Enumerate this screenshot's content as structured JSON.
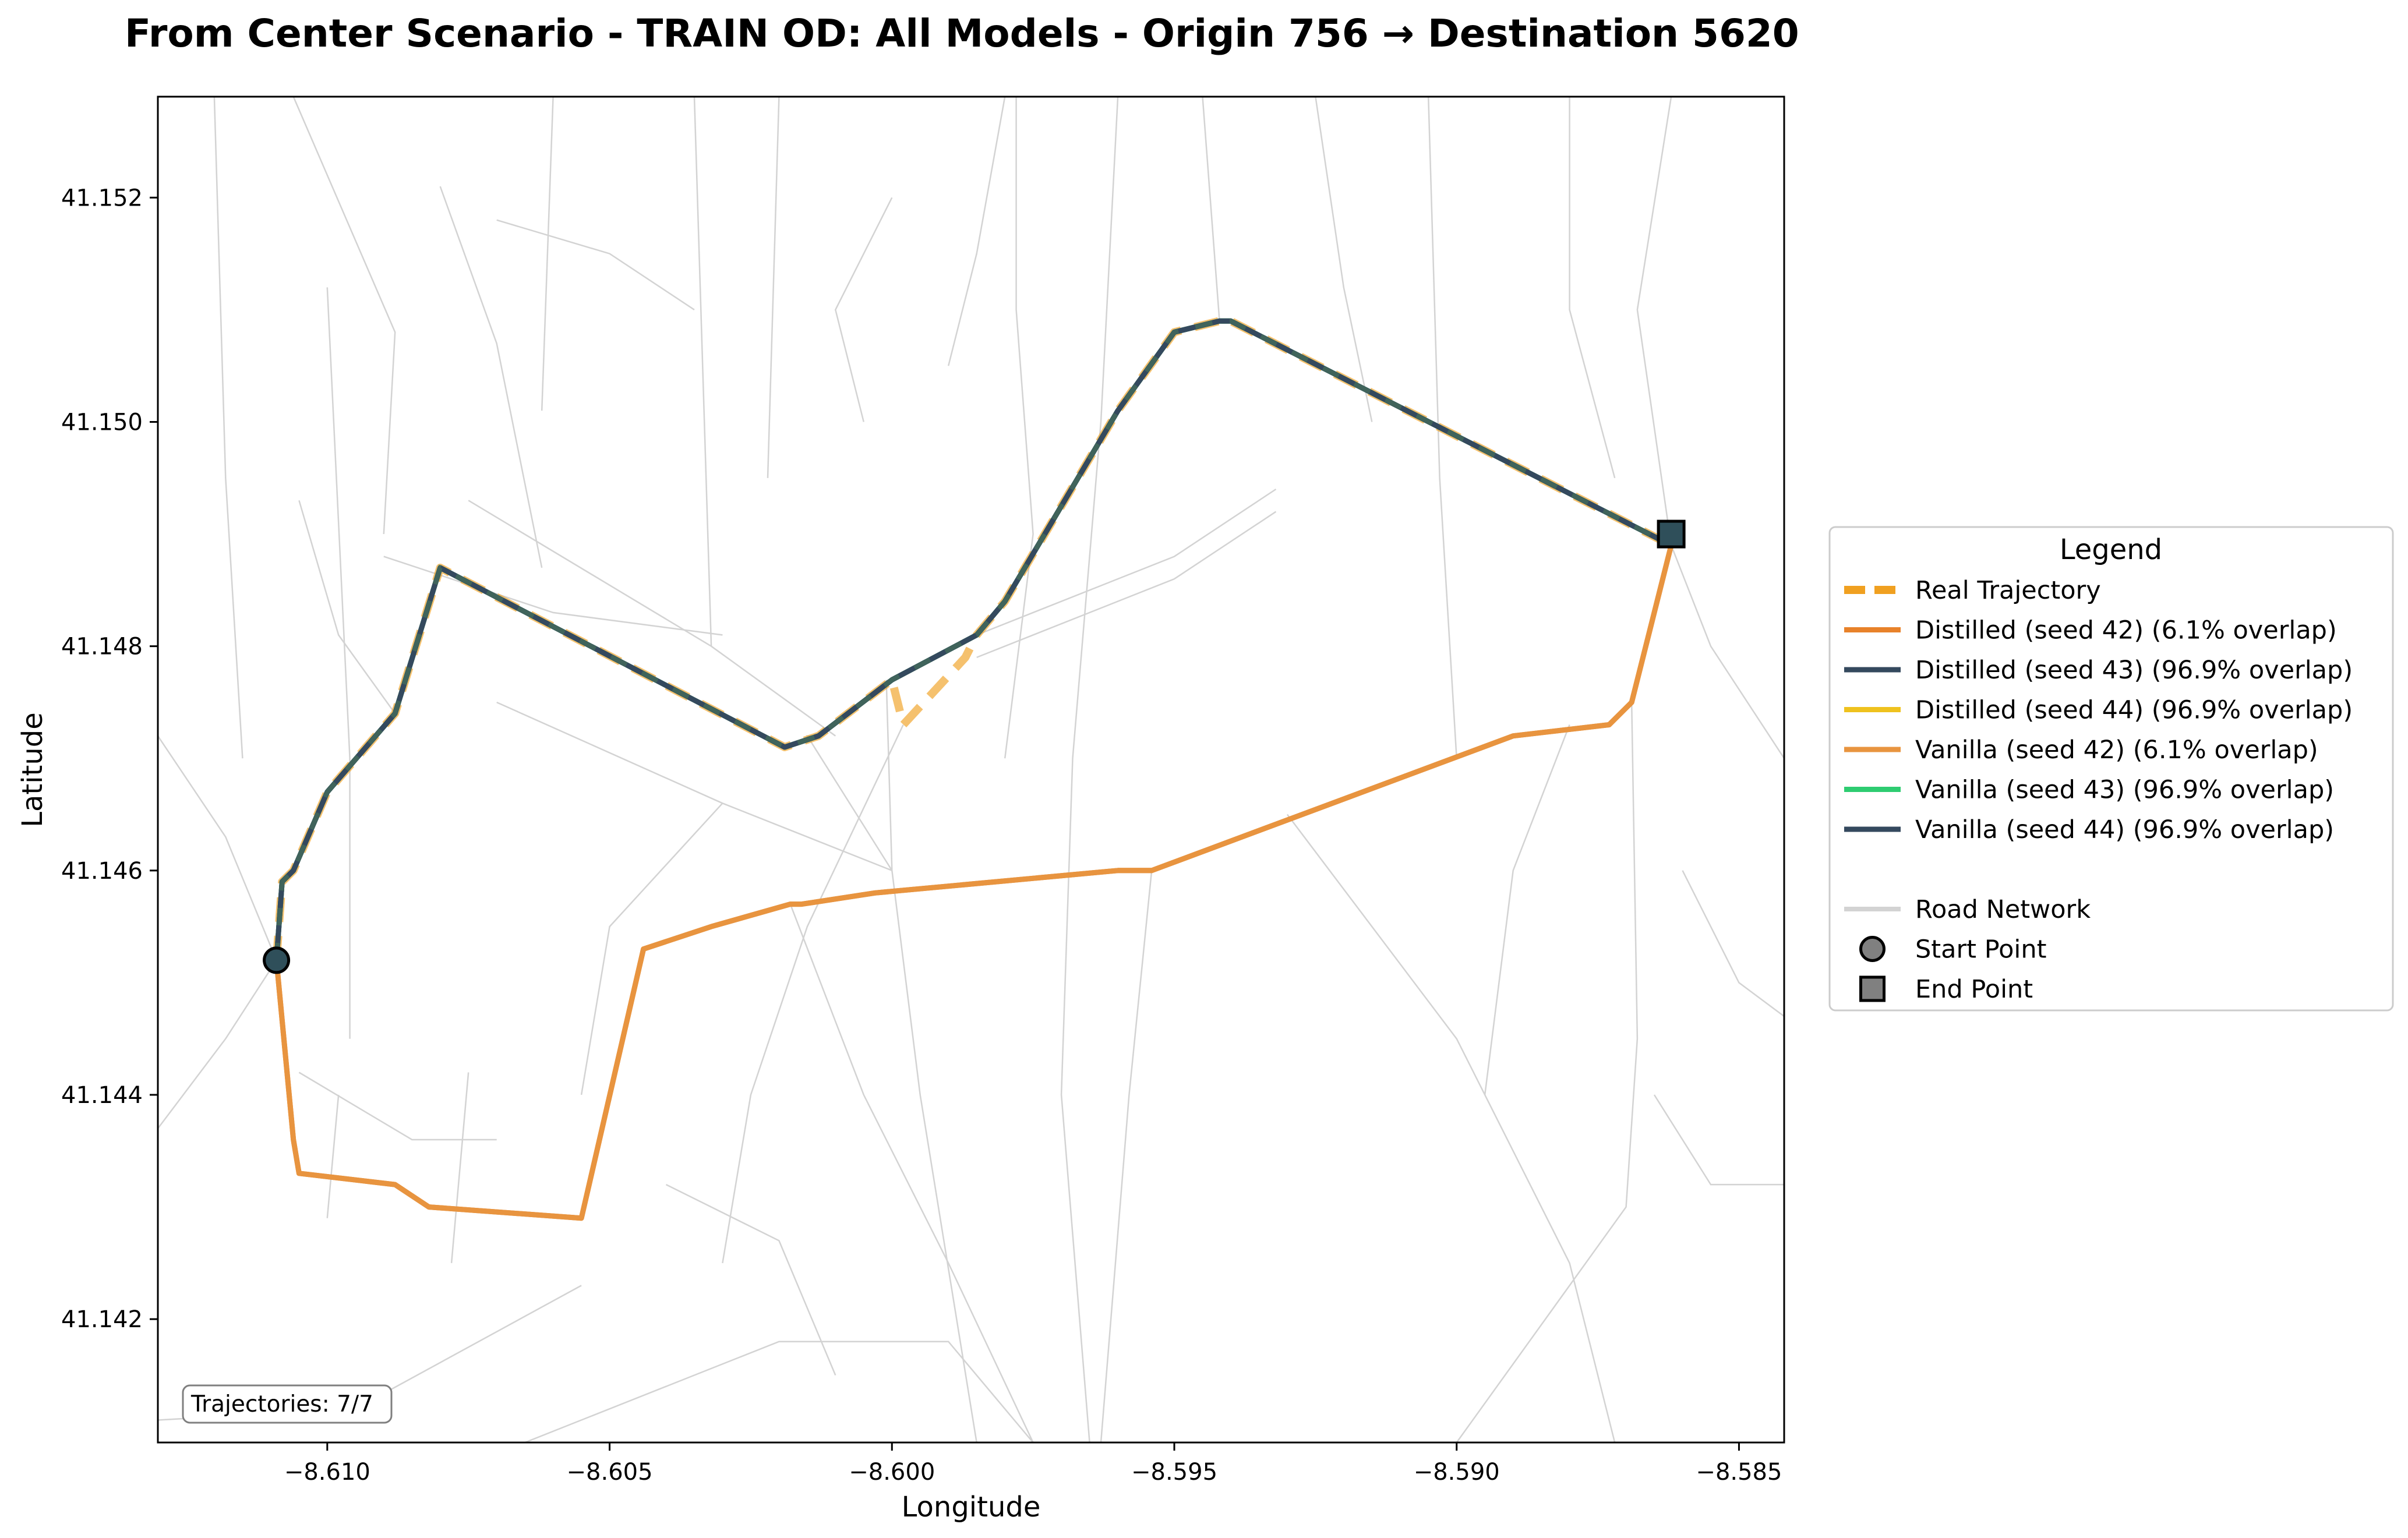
{
  "chart_data": {
    "type": "line",
    "title": "From Center Scenario - TRAIN OD: All Models - Origin 756 → Destination 5620",
    "xlabel": "Longitude",
    "ylabel": "Latitude",
    "xlim": [
      -8.613,
      -8.5842
    ],
    "ylim": [
      41.1409,
      41.1529
    ],
    "xticks": [
      -8.61,
      -8.605,
      -8.6,
      -8.595,
      -8.59,
      -8.585
    ],
    "xtick_labels": [
      "−8.610",
      "−8.605",
      "−8.600",
      "−8.595",
      "−8.590",
      "−8.585"
    ],
    "yticks": [
      41.142,
      41.144,
      41.146,
      41.148,
      41.15,
      41.152
    ],
    "ytick_labels": [
      "41.142",
      "41.144",
      "41.146",
      "41.148",
      "41.150",
      "41.152"
    ],
    "grid": false,
    "legend_title": "Legend",
    "legend_position": "outside right",
    "annotation": "Trajectories: 7/7",
    "series": [
      {
        "name": "Real Trajectory",
        "color": "#F0A020",
        "style": "dashed",
        "route": "real"
      },
      {
        "name": "Distilled (seed 42) (6.1% overlap)",
        "color": "#E8822A",
        "style": "solid",
        "route": "alt"
      },
      {
        "name": "Distilled (seed 43) (96.9% overlap)",
        "color": "#34495E",
        "style": "solid",
        "route": "main"
      },
      {
        "name": "Distilled (seed 44) (96.9% overlap)",
        "color": "#EFC21E",
        "style": "solid",
        "route": "main"
      },
      {
        "name": "Vanilla (seed 42) (6.1% overlap)",
        "color": "#E8943F",
        "style": "solid",
        "route": "alt"
      },
      {
        "name": "Vanilla (seed 43) (96.9% overlap)",
        "color": "#2ECC71",
        "style": "solid",
        "route": "main"
      },
      {
        "name": "Vanilla (seed 44) (96.9% overlap)",
        "color": "#34495E",
        "style": "solid",
        "route": "main"
      }
    ],
    "routes": {
      "main": {
        "x": [
          -8.6109,
          -8.6108,
          -8.6106,
          -8.61,
          -8.6088,
          -8.608,
          -8.6019,
          -8.6013,
          -8.6,
          -8.5985,
          -8.598,
          -8.596,
          -8.595,
          -8.5942,
          -8.594,
          -8.5862
        ],
        "y": [
          41.1452,
          41.1459,
          41.146,
          41.1467,
          41.1474,
          41.1487,
          41.1471,
          41.1472,
          41.1477,
          41.1481,
          41.1484,
          41.1501,
          41.1508,
          41.1509,
          41.1509,
          41.1489
        ]
      },
      "real": {
        "x": [
          -8.6109,
          -8.6108,
          -8.6106,
          -8.61,
          -8.6088,
          -8.608,
          -8.6019,
          -8.6013,
          -8.6,
          -8.5998,
          -8.5987,
          -8.5985,
          -8.598,
          -8.596,
          -8.595,
          -8.5942,
          -8.594,
          -8.5862
        ],
        "y": [
          41.1452,
          41.1459,
          41.146,
          41.1467,
          41.1474,
          41.1487,
          41.1471,
          41.1472,
          41.1477,
          41.1473,
          41.1479,
          41.1481,
          41.1484,
          41.1501,
          41.1508,
          41.1509,
          41.1509,
          41.1489
        ]
      },
      "alt": {
        "x": [
          -8.6109,
          -8.6106,
          -8.6105,
          -8.6088,
          -8.6082,
          -8.6055,
          -8.6044,
          -8.6032,
          -8.6018,
          -8.6016,
          -8.6003,
          -8.596,
          -8.5954,
          -8.589,
          -8.5873,
          -8.5869,
          -8.5862
        ],
        "y": [
          41.1452,
          41.1436,
          41.1433,
          41.1432,
          41.143,
          41.1429,
          41.1453,
          41.1455,
          41.1457,
          41.1457,
          41.1458,
          41.146,
          41.146,
          41.1472,
          41.1473,
          41.1475,
          41.1489
        ]
      }
    },
    "start_point": {
      "x": -8.6109,
      "y": 41.1452,
      "label": "Start Point"
    },
    "end_point": {
      "x": -8.5862,
      "y": 41.149,
      "label": "End Point"
    },
    "road_network_label": "Road Network",
    "road_network": [
      [
        [
          -8.6106,
          41.1529
        ],
        [
          -8.6088,
          41.1508
        ],
        [
          -8.609,
          41.149
        ]
      ],
      [
        [
          -8.61,
          41.1512
        ],
        [
          -8.6096,
          41.147
        ],
        [
          -8.6096,
          41.1445
        ]
      ],
      [
        [
          -8.608,
          41.1521
        ],
        [
          -8.607,
          41.1507
        ],
        [
          -8.6062,
          41.1487
        ]
      ],
      [
        [
          -8.607,
          41.1518
        ],
        [
          -8.605,
          41.1515
        ],
        [
          -8.6035,
          41.151
        ]
      ],
      [
        [
          -8.606,
          41.1529
        ],
        [
          -8.6062,
          41.1501
        ]
      ],
      [
        [
          -8.6035,
          41.1529
        ],
        [
          -8.6032,
          41.148
        ]
      ],
      [
        [
          -8.602,
          41.1529
        ],
        [
          -8.6022,
          41.1495
        ]
      ],
      [
        [
          -8.6075,
          41.1493
        ],
        [
          -8.6032,
          41.148
        ],
        [
          -8.601,
          41.1472
        ]
      ],
      [
        [
          -8.613,
          41.1472
        ],
        [
          -8.6118,
          41.1463
        ],
        [
          -8.6109,
          41.1452
        ]
      ],
      [
        [
          -8.613,
          41.1437
        ],
        [
          -8.6118,
          41.1445
        ],
        [
          -8.6109,
          41.1452
        ]
      ],
      [
        [
          -8.6105,
          41.1493
        ],
        [
          -8.6098,
          41.1481
        ],
        [
          -8.6088,
          41.1474
        ]
      ],
      [
        [
          -8.609,
          41.1488
        ],
        [
          -8.606,
          41.1483
        ],
        [
          -8.603,
          41.1481
        ]
      ],
      [
        [
          -8.607,
          41.1475
        ],
        [
          -8.603,
          41.1466
        ],
        [
          -8.6,
          41.146
        ]
      ],
      [
        [
          -8.603,
          41.1466
        ],
        [
          -8.605,
          41.1455
        ],
        [
          -8.6055,
          41.144
        ]
      ],
      [
        [
          -8.6105,
          41.1442
        ],
        [
          -8.6085,
          41.1436
        ],
        [
          -8.607,
          41.1436
        ]
      ],
      [
        [
          -8.6098,
          41.144
        ],
        [
          -8.61,
          41.1429
        ]
      ],
      [
        [
          -8.6075,
          41.1442
        ],
        [
          -8.6078,
          41.1425
        ]
      ],
      [
        [
          -8.604,
          41.1432
        ],
        [
          -8.602,
          41.1427
        ],
        [
          -8.601,
          41.1415
        ]
      ],
      [
        [
          -8.613,
          41.1411
        ],
        [
          -8.6095,
          41.1412
        ],
        [
          -8.6055,
          41.1423
        ]
      ],
      [
        [
          -8.6065,
          41.1409
        ],
        [
          -8.602,
          41.1418
        ],
        [
          -8.599,
          41.1418
        ],
        [
          -8.5975,
          41.1409
        ]
      ],
      [
        [
          -8.6,
          41.146
        ],
        [
          -8.6015,
          41.1472
        ],
        [
          -8.6013,
          41.1472
        ]
      ],
      [
        [
          -8.6001,
          41.1477
        ],
        [
          -8.6,
          41.146
        ],
        [
          -8.5995,
          41.144
        ],
        [
          -8.5985,
          41.1409
        ]
      ],
      [
        [
          -8.5998,
          41.1473
        ],
        [
          -8.6015,
          41.1455
        ],
        [
          -8.6025,
          41.144
        ],
        [
          -8.603,
          41.1425
        ]
      ],
      [
        [
          -8.598,
          41.147
        ],
        [
          -8.5975,
          41.149
        ],
        [
          -8.5978,
          41.151
        ],
        [
          -8.5978,
          41.1529
        ]
      ],
      [
        [
          -8.6005,
          41.15
        ],
        [
          -8.601,
          41.151
        ],
        [
          -8.6,
          41.152
        ]
      ],
      [
        [
          -8.599,
          41.1505
        ],
        [
          -8.5985,
          41.1515
        ],
        [
          -8.598,
          41.1529
        ]
      ],
      [
        [
          -8.596,
          41.1529
        ],
        [
          -8.5963,
          41.15
        ],
        [
          -8.5968,
          41.147
        ],
        [
          -8.597,
          41.144
        ],
        [
          -8.5965,
          41.1409
        ]
      ],
      [
        [
          -8.5945,
          41.1529
        ],
        [
          -8.5942,
          41.1509
        ]
      ],
      [
        [
          -8.5925,
          41.1529
        ],
        [
          -8.592,
          41.1512
        ],
        [
          -8.5915,
          41.15
        ]
      ],
      [
        [
          -8.5905,
          41.1529
        ],
        [
          -8.5903,
          41.1495
        ],
        [
          -8.59,
          41.147
        ]
      ],
      [
        [
          -8.588,
          41.1529
        ],
        [
          -8.588,
          41.151
        ],
        [
          -8.5872,
          41.1495
        ]
      ],
      [
        [
          -8.5862,
          41.1529
        ],
        [
          -8.5868,
          41.151
        ],
        [
          -8.5862,
          41.1489
        ]
      ],
      [
        [
          -8.5862,
          41.1489
        ],
        [
          -8.5855,
          41.148
        ],
        [
          -8.5842,
          41.147
        ]
      ],
      [
        [
          -8.5985,
          41.1481
        ],
        [
          -8.595,
          41.1488
        ],
        [
          -8.5932,
          41.1494
        ]
      ],
      [
        [
          -8.5985,
          41.1479
        ],
        [
          -8.595,
          41.1486
        ],
        [
          -8.5932,
          41.1492
        ]
      ],
      [
        [
          -8.593,
          41.1465
        ],
        [
          -8.59,
          41.1445
        ],
        [
          -8.588,
          41.1425
        ],
        [
          -8.5872,
          41.1409
        ]
      ],
      [
        [
          -8.588,
          41.1473
        ],
        [
          -8.589,
          41.146
        ],
        [
          -8.5895,
          41.144
        ]
      ],
      [
        [
          -8.5869,
          41.1475
        ],
        [
          -8.5868,
          41.1445
        ],
        [
          -8.587,
          41.143
        ],
        [
          -8.59,
          41.1409
        ]
      ],
      [
        [
          -8.5865,
          41.144
        ],
        [
          -8.5855,
          41.1432
        ],
        [
          -8.5842,
          41.1432
        ]
      ],
      [
        [
          -8.586,
          41.146
        ],
        [
          -8.585,
          41.145
        ],
        [
          -8.5842,
          41.1447
        ]
      ],
      [
        [
          -8.5954,
          41.146
        ],
        [
          -8.5958,
          41.144
        ],
        [
          -8.5963,
          41.1409
        ]
      ],
      [
        [
          -8.6018,
          41.1457
        ],
        [
          -8.6005,
          41.144
        ],
        [
          -8.599,
          41.1425
        ],
        [
          -8.5975,
          41.1409
        ]
      ],
      [
        [
          -8.612,
          41.1529
        ],
        [
          -8.6118,
          41.1495
        ],
        [
          -8.6115,
          41.147
        ]
      ]
    ]
  }
}
